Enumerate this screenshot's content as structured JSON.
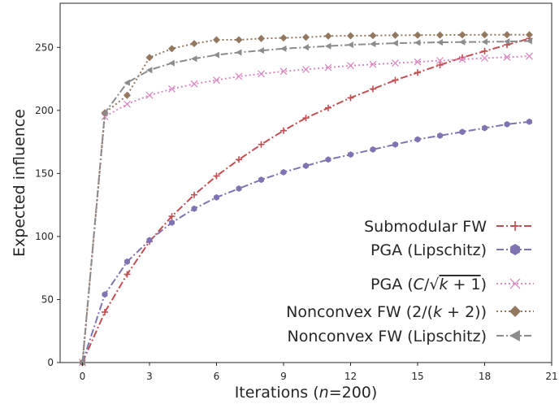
{
  "chart_data": {
    "type": "line",
    "xlabel": "Iterations (n=200)",
    "xlabel_parts": {
      "pre": "Iterations (",
      "var": "n",
      "post": "=200)"
    },
    "ylabel": "Expected influence",
    "xlim": [
      -1,
      21
    ],
    "ylim": [
      0,
      285
    ],
    "xticks": [
      0,
      3,
      6,
      9,
      12,
      15,
      18,
      21
    ],
    "yticks": [
      0,
      50,
      100,
      150,
      200,
      250
    ],
    "grid": false,
    "legend_position": "lower-right",
    "x": [
      0,
      1,
      2,
      3,
      4,
      5,
      6,
      7,
      8,
      9,
      10,
      11,
      12,
      13,
      14,
      15,
      16,
      17,
      18,
      19,
      20
    ],
    "series": [
      {
        "name": "Submodular FW",
        "color": "#c44e52",
        "marker": "plus",
        "linestyle": "dashdot",
        "values": [
          0,
          40,
          70,
          96,
          116,
          133,
          148,
          161,
          173,
          184,
          194,
          202,
          210,
          217,
          224,
          230,
          236,
          242,
          247,
          252,
          257
        ]
      },
      {
        "name": "PGA (Lipschitz)",
        "color": "#8172b2",
        "marker": "hexagon",
        "linestyle": "dashdot",
        "values": [
          0,
          54,
          80,
          97,
          111,
          122,
          131,
          138,
          145,
          151,
          156,
          161,
          165,
          169,
          173,
          177,
          180,
          183,
          186,
          189,
          191
        ]
      },
      {
        "name": "PGA (C/√(k+1))",
        "color": "#da8bc3",
        "marker": "x",
        "linestyle": "dotted",
        "values": [
          0,
          195,
          205,
          212,
          217,
          221,
          224,
          227,
          229,
          231,
          232.5,
          234,
          235.5,
          236.5,
          237.5,
          238.5,
          239.5,
          240.5,
          241.5,
          242.2,
          243
        ]
      },
      {
        "name": "Nonconvex FW (2/(k+2))",
        "color": "#937860",
        "marker": "diamond",
        "linestyle": "dotted",
        "values": [
          0,
          198,
          212,
          242,
          249,
          253,
          256,
          256,
          257,
          257.5,
          258,
          259,
          259.2,
          259.4,
          259.6,
          259.7,
          259.8,
          259.9,
          260,
          260,
          260
        ]
      },
      {
        "name": "Nonconvex FW (Lipschitz)",
        "color": "#8c8c8c",
        "marker": "triangle-left",
        "linestyle": "dashdot",
        "values": [
          0,
          198,
          222,
          232,
          237.5,
          241,
          244,
          246,
          247.5,
          249,
          250,
          251,
          252,
          252.7,
          253.3,
          253.7,
          254,
          254.2,
          254.4,
          254.6,
          255
        ]
      }
    ]
  }
}
